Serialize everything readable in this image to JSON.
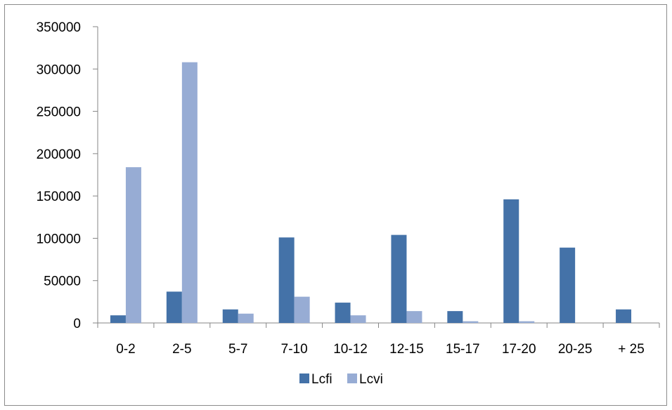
{
  "chart_data": {
    "type": "bar",
    "title": "",
    "xlabel": "",
    "ylabel": "",
    "categories": [
      "0-2",
      "2-5",
      "5-7",
      "7-10",
      "10-12",
      "12-15",
      "15-17",
      "17-20",
      "20-25",
      "+ 25"
    ],
    "series": [
      {
        "name": "Lcfi",
        "color": "#4472a8",
        "values": [
          9000,
          37000,
          16000,
          101000,
          24000,
          104000,
          14000,
          146000,
          89000,
          16000
        ]
      },
      {
        "name": "Lcvi",
        "color": "#97acd4",
        "values": [
          184000,
          308000,
          11000,
          31000,
          9000,
          14000,
          2000,
          2000,
          0,
          0
        ]
      }
    ],
    "ylim": [
      0,
      350000
    ],
    "yticks": [
      0,
      50000,
      100000,
      150000,
      200000,
      250000,
      300000,
      350000
    ],
    "grid": false,
    "legend_position": "bottom"
  }
}
